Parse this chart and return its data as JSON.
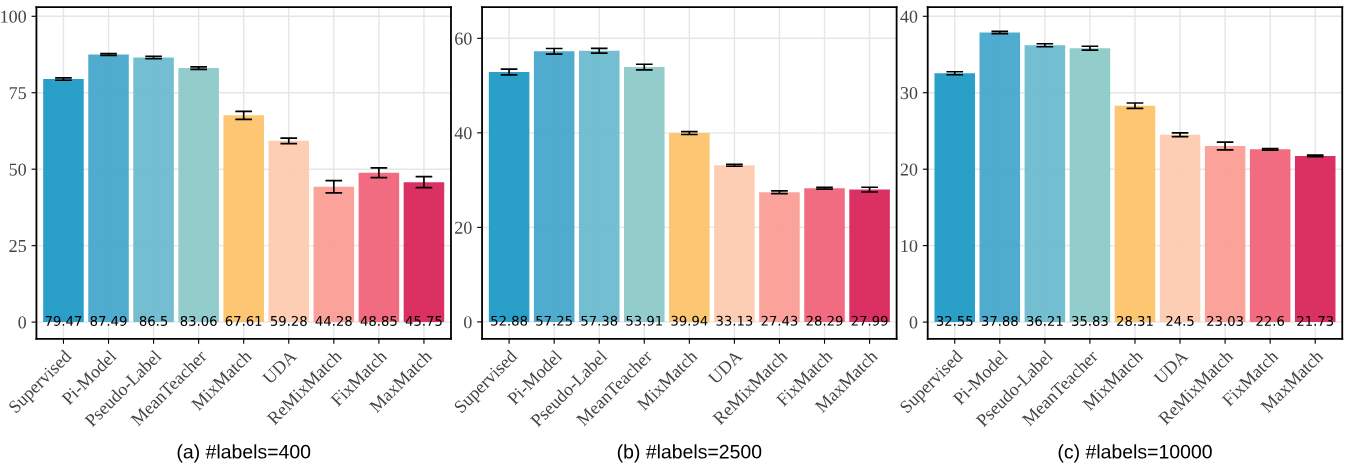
{
  "chart_data": [
    {
      "type": "bar",
      "xlabel": "(a) #labels=400",
      "categories": [
        "Supervised",
        "Pi-Model",
        "Pseudo-Label",
        "MeanTeacher",
        "MixMatch",
        "UDA",
        "ReMixMatch",
        "FixMatch",
        "MaxMatch"
      ],
      "values": [
        79.47,
        87.49,
        86.5,
        83.06,
        67.61,
        59.28,
        44.28,
        48.85,
        45.75
      ],
      "errors": [
        0.4,
        0.3,
        0.4,
        0.4,
        1.3,
        0.9,
        2.0,
        1.6,
        1.8
      ],
      "colors": [
        "#1f9ac4",
        "#47a8cb",
        "#6bbbcd",
        "#8ccac8",
        "#fdc36a",
        "#fdcbb0",
        "#fb9d96",
        "#f0637a",
        "#d8265a"
      ],
      "ylim": [
        -5.5,
        103
      ],
      "yticks": [
        0,
        25,
        50,
        75,
        100
      ],
      "data_labels": true,
      "grid": true
    },
    {
      "type": "bar",
      "xlabel": "(b) #labels=2500",
      "categories": [
        "Supervised",
        "Pi-Model",
        "Pseudo-Label",
        "MeanTeacher",
        "MixMatch",
        "UDA",
        "ReMixMatch",
        "FixMatch",
        "MaxMatch"
      ],
      "values": [
        52.88,
        57.25,
        57.38,
        53.91,
        39.94,
        33.13,
        27.43,
        28.29,
        27.99
      ],
      "errors": [
        0.6,
        0.6,
        0.5,
        0.6,
        0.3,
        0.2,
        0.3,
        0.2,
        0.5
      ],
      "colors": [
        "#1f9ac4",
        "#47a8cb",
        "#6bbbcd",
        "#8ccac8",
        "#fdc36a",
        "#fdcbb0",
        "#fb9d96",
        "#f0637a",
        "#d8265a"
      ],
      "ylim": [
        -3.6,
        66.6
      ],
      "yticks": [
        0,
        20,
        40,
        60
      ],
      "data_labels": true,
      "grid": true
    },
    {
      "type": "bar",
      "xlabel": "(c) #labels=10000",
      "categories": [
        "Supervised",
        "Pi-Model",
        "Pseudo-Label",
        "MeanTeacher",
        "MixMatch",
        "UDA",
        "ReMixMatch",
        "FixMatch",
        "MaxMatch"
      ],
      "values": [
        32.55,
        37.88,
        36.21,
        35.83,
        28.31,
        24.5,
        23.03,
        22.6,
        21.73
      ],
      "errors": [
        0.2,
        0.15,
        0.2,
        0.25,
        0.35,
        0.25,
        0.5,
        0.1,
        0.1
      ],
      "colors": [
        "#1f9ac4",
        "#47a8cb",
        "#6bbbcd",
        "#8ccac8",
        "#fdc36a",
        "#fdcbb0",
        "#fb9d96",
        "#f0637a",
        "#d8265a"
      ],
      "ylim": [
        -2.2,
        41.2
      ],
      "yticks": [
        0,
        10,
        20,
        30,
        40
      ],
      "data_labels": true,
      "grid": true
    }
  ]
}
